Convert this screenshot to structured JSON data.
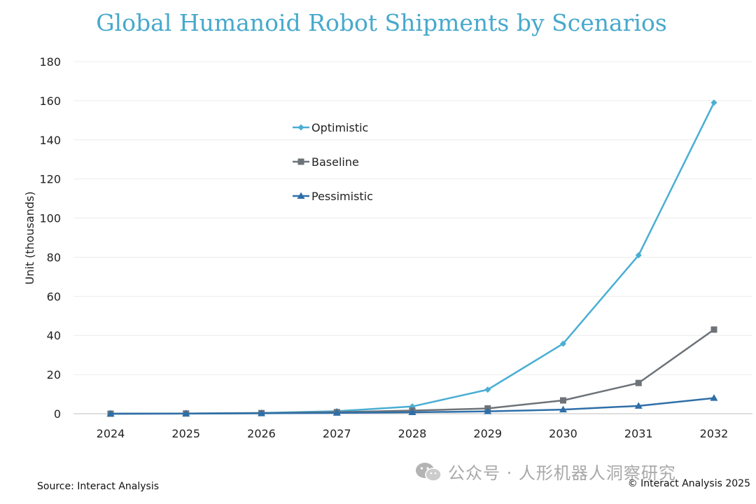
{
  "colors": {
    "optimistic": "#4aaed3",
    "baseline": "#6d7378",
    "pessimistic": "#2f6fa8",
    "title": "#47a9cc",
    "grid": "#ececec",
    "axis": "#bdbdbd"
  },
  "chart_data": {
    "type": "line",
    "title": "Global Humanoid Robot Shipments by Scenarios",
    "xlabel": "",
    "ylabel": "Unit (thousands)",
    "categories": [
      "2024",
      "2025",
      "2026",
      "2027",
      "2028",
      "2029",
      "2030",
      "2031",
      "2032"
    ],
    "ylim": [
      0,
      180
    ],
    "yticks": [
      0,
      20,
      40,
      60,
      80,
      100,
      120,
      140,
      160,
      180
    ],
    "grid": true,
    "legend_position": "upper-middle",
    "series": [
      {
        "name": "Optimistic",
        "marker": "diamond",
        "values": [
          0,
          0.1,
          0.4,
          1.3,
          3.7,
          12.3,
          35.8,
          81.0,
          159.0
        ]
      },
      {
        "name": "Baseline",
        "marker": "square",
        "values": [
          0,
          0.1,
          0.3,
          0.8,
          1.6,
          2.7,
          6.8,
          15.7,
          43.0
        ]
      },
      {
        "name": "Pessimistic",
        "marker": "triangle",
        "values": [
          0,
          0.05,
          0.2,
          0.4,
          0.7,
          1.2,
          2.1,
          4.0,
          8.0
        ]
      }
    ]
  },
  "footer": {
    "source": "Source: Interact Analysis",
    "copyright": "© Interact Analysis 2025",
    "watermark": "公众号 · 人形机器人洞察研究"
  }
}
